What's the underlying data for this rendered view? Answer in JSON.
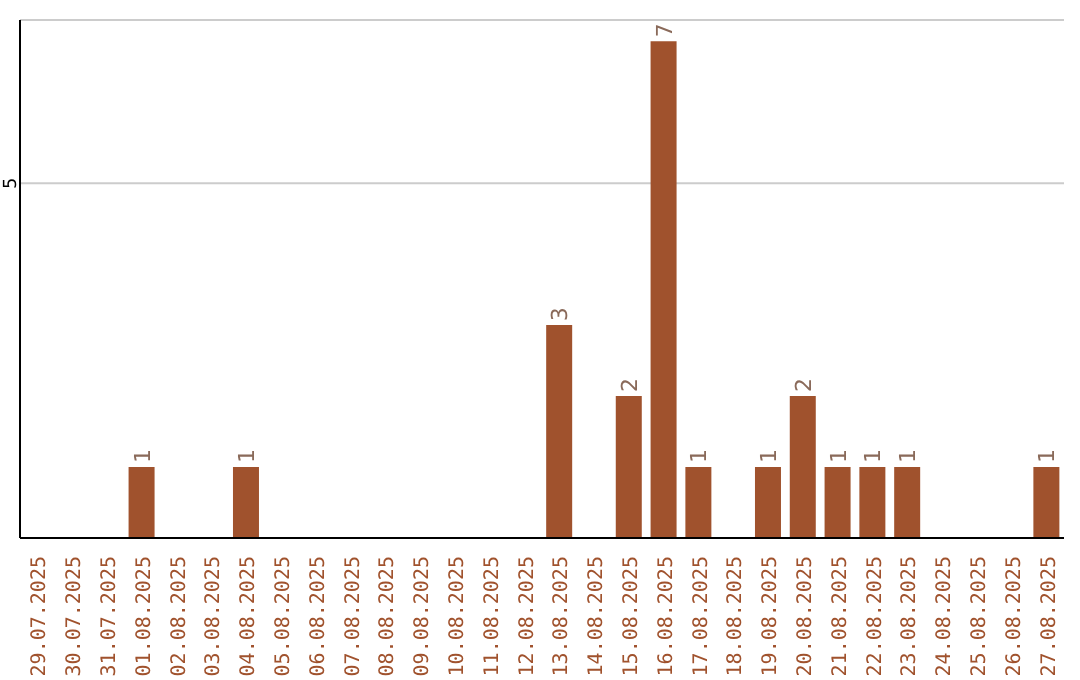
{
  "chart_data": {
    "type": "bar",
    "categories": [
      "29.07.2025",
      "30.07.2025",
      "31.07.2025",
      "01.08.2025",
      "02.08.2025",
      "03.08.2025",
      "04.08.2025",
      "05.08.2025",
      "06.08.2025",
      "07.08.2025",
      "08.08.2025",
      "09.08.2025",
      "10.08.2025",
      "11.08.2025",
      "12.08.2025",
      "13.08.2025",
      "14.08.2025",
      "15.08.2025",
      "16.08.2025",
      "17.08.2025",
      "18.08.2025",
      "19.08.2025",
      "20.08.2025",
      "21.08.2025",
      "22.08.2025",
      "23.08.2025",
      "24.08.2025",
      "25.08.2025",
      "26.08.2025",
      "27.08.2025"
    ],
    "values": [
      0,
      0,
      0,
      1,
      0,
      0,
      1,
      0,
      0,
      0,
      0,
      0,
      0,
      0,
      0,
      3,
      0,
      2,
      7,
      1,
      0,
      1,
      2,
      1,
      1,
      1,
      0,
      0,
      0,
      1
    ],
    "value_labels": [
      null,
      null,
      null,
      "1",
      null,
      null,
      "1",
      null,
      null,
      null,
      null,
      null,
      null,
      null,
      null,
      "3",
      null,
      "2",
      "7",
      "1",
      null,
      "1",
      "2",
      "1",
      "1",
      "1",
      null,
      null,
      null,
      "1"
    ],
    "color": "#a0522d",
    "ylim": [
      0,
      7.3
    ],
    "yticks": [
      5
    ],
    "grid": "y"
  }
}
